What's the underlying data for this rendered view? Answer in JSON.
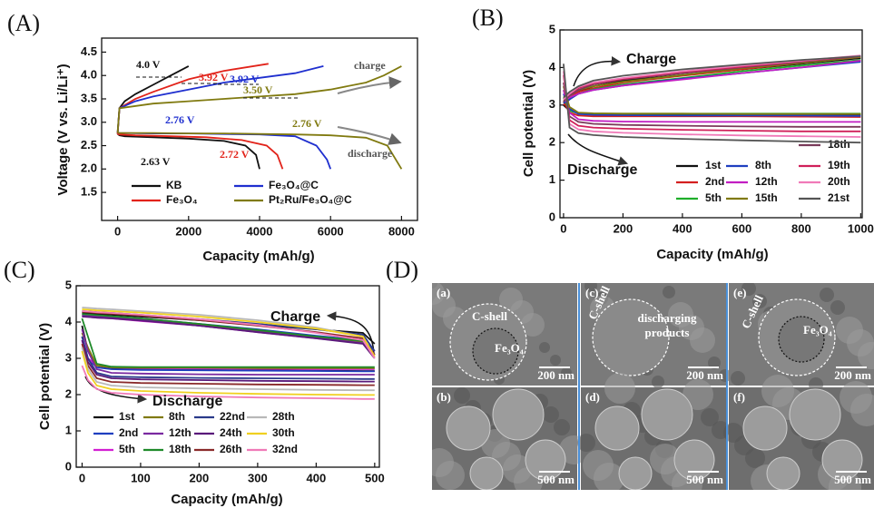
{
  "chart_data": [
    {
      "type": "line",
      "panel_label": "(A)",
      "x_label": "Capacity (mAh/g)",
      "y_label": "Voltage (V vs. Li/Li⁺)",
      "xlim": [
        -450,
        8450
      ],
      "ylim": [
        0.9,
        4.8
      ],
      "xticks": [
        0,
        2000,
        4000,
        6000,
        8000
      ],
      "yticks": [
        1.5,
        {
          "value": 2,
          "label": "2.0"
        },
        2.5,
        {
          "value": 3,
          "label": "3.0"
        },
        3.5,
        {
          "value": 4,
          "label": "4.0"
        },
        4.5
      ],
      "series": [
        {
          "name": "KB",
          "color": "#111111",
          "discharge_x": [
            0,
            50,
            200,
            1000,
            2000,
            3000,
            3600,
            3900,
            4000
          ],
          "discharge": [
            2.75,
            2.72,
            2.7,
            2.68,
            2.65,
            2.6,
            2.5,
            2.3,
            2.0
          ],
          "charge_x": [
            0,
            50,
            200,
            500,
            1000,
            1500,
            2000
          ],
          "charge": [
            2.75,
            3.3,
            3.45,
            3.6,
            3.8,
            4.0,
            4.2
          ]
        },
        {
          "name": "Fe₃O₄",
          "color": "#e2231a",
          "discharge_x": [
            0,
            50,
            500,
            1500,
            2500,
            3500,
            4200,
            4500,
            4650
          ],
          "discharge": [
            2.75,
            2.74,
            2.72,
            2.7,
            2.68,
            2.62,
            2.5,
            2.3,
            2.0
          ],
          "charge_x": [
            0,
            50,
            500,
            1000,
            2000,
            3000,
            4250
          ],
          "charge": [
            2.75,
            3.3,
            3.5,
            3.65,
            3.92,
            4.1,
            4.25
          ]
        },
        {
          "name": "Fe₃O₄@C",
          "color": "#1f2fcf",
          "discharge_x": [
            0,
            50,
            1000,
            2000,
            3000,
            4000,
            5000,
            5600,
            5900,
            6000
          ],
          "discharge": [
            2.78,
            2.77,
            2.76,
            2.76,
            2.75,
            2.74,
            2.7,
            2.5,
            2.2,
            2.0
          ],
          "charge_x": [
            0,
            50,
            500,
            1000,
            2000,
            3000,
            4000,
            5000,
            5800
          ],
          "charge": [
            2.78,
            3.3,
            3.45,
            3.55,
            3.7,
            3.85,
            3.95,
            4.05,
            4.2
          ]
        },
        {
          "name": "Pt₂Ru/Fe₃O₄@C",
          "color": "#807a10",
          "discharge_x": [
            0,
            50,
            1000,
            2000,
            3000,
            4000,
            5000,
            6000,
            7000,
            7600,
            8000
          ],
          "discharge": [
            2.78,
            2.77,
            2.77,
            2.76,
            2.76,
            2.75,
            2.74,
            2.72,
            2.67,
            2.5,
            2.0
          ],
          "charge_x": [
            0,
            50,
            1000,
            2000,
            3000,
            4000,
            5000,
            6000,
            7000,
            7500,
            8000
          ],
          "charge": [
            2.78,
            3.3,
            3.4,
            3.45,
            3.5,
            3.55,
            3.6,
            3.7,
            3.85,
            4.0,
            4.2
          ]
        }
      ],
      "annotations": [
        {
          "text": "4.0 V",
          "color": "#111111"
        },
        {
          "text": "3.92 V",
          "color": "#e2231a"
        },
        {
          "text": "3.92 V",
          "color": "#1f2fcf"
        },
        {
          "text": "3.50 V",
          "color": "#807a10"
        },
        {
          "text": "2.76 V",
          "color": "#1f2fcf"
        },
        {
          "text": "2.76 V",
          "color": "#807a10"
        },
        {
          "text": "2.63 V",
          "color": "#111111"
        },
        {
          "text": "2.72 V",
          "color": "#e2231a"
        },
        {
          "text": "charge",
          "color": "#555555"
        },
        {
          "text": "discharge",
          "color": "#555555"
        }
      ]
    },
    {
      "type": "line",
      "panel_label": "(B)",
      "x_label": "Capacity (mAh/g)",
      "y_label": "Cell potential (V)",
      "xlim": [
        -12,
        1005
      ],
      "ylim": [
        0,
        5
      ],
      "xticks": [
        0,
        200,
        400,
        600,
        800,
        1000
      ],
      "yticks": [
        0,
        1,
        2,
        3,
        4,
        5
      ],
      "x": [
        0,
        20,
        50,
        100,
        200,
        400,
        600,
        800,
        1000
      ],
      "series": [
        {
          "name": "1st",
          "color": "#111111",
          "discharge": [
            3.0,
            2.85,
            2.78,
            2.76,
            2.75,
            2.75,
            2.75,
            2.75,
            2.74
          ],
          "charge": [
            3.0,
            3.15,
            3.35,
            3.5,
            3.65,
            3.8,
            3.95,
            4.1,
            4.25
          ]
        },
        {
          "name": "2nd",
          "color": "#d42020",
          "discharge": [
            3.1,
            2.8,
            2.72,
            2.7,
            2.7,
            2.7,
            2.7,
            2.69,
            2.68
          ],
          "charge": [
            3.0,
            3.2,
            3.35,
            3.45,
            3.6,
            3.78,
            3.95,
            4.12,
            4.28
          ]
        },
        {
          "name": "5th",
          "color": "#1fae2a",
          "discharge": [
            3.2,
            2.85,
            2.78,
            2.77,
            2.77,
            2.77,
            2.77,
            2.77,
            2.77
          ],
          "charge": [
            3.05,
            3.2,
            3.3,
            3.42,
            3.55,
            3.72,
            3.9,
            4.05,
            4.2
          ]
        },
        {
          "name": "8th",
          "color": "#1f3fc0",
          "discharge": [
            3.3,
            2.9,
            2.76,
            2.74,
            2.73,
            2.72,
            2.72,
            2.72,
            2.71
          ],
          "charge": [
            3.05,
            3.15,
            3.3,
            3.4,
            3.52,
            3.7,
            3.85,
            4.0,
            4.15
          ]
        },
        {
          "name": "12th",
          "color": "#c21fc2",
          "discharge": [
            3.4,
            2.8,
            2.62,
            2.58,
            2.56,
            2.55,
            2.55,
            2.55,
            2.55
          ],
          "charge": [
            3.1,
            3.2,
            3.3,
            3.4,
            3.52,
            3.68,
            3.85,
            4.0,
            4.18
          ]
        },
        {
          "name": "15th",
          "color": "#807a10",
          "discharge": [
            3.5,
            2.95,
            2.8,
            2.78,
            2.77,
            2.77,
            2.76,
            2.76,
            2.76
          ],
          "charge": [
            3.1,
            3.25,
            3.4,
            3.5,
            3.62,
            3.8,
            3.98,
            4.12,
            4.28
          ]
        },
        {
          "name": "18th",
          "color": "#7a3a5a",
          "discharge": [
            3.6,
            2.7,
            2.55,
            2.5,
            2.47,
            2.45,
            2.43,
            2.42,
            2.42
          ],
          "charge": [
            3.1,
            3.25,
            3.4,
            3.55,
            3.68,
            3.85,
            4.0,
            4.15,
            4.3
          ]
        },
        {
          "name": "19th",
          "color": "#d0205a",
          "discharge": [
            3.8,
            2.6,
            2.45,
            2.4,
            2.37,
            2.34,
            2.32,
            2.3,
            2.3
          ],
          "charge": [
            3.15,
            3.3,
            3.45,
            3.58,
            3.7,
            3.88,
            4.02,
            4.17,
            4.3
          ]
        },
        {
          "name": "20th",
          "color": "#f07ab8",
          "discharge": [
            3.9,
            2.5,
            2.35,
            2.3,
            2.26,
            2.22,
            2.19,
            2.17,
            2.15
          ],
          "charge": [
            3.15,
            3.3,
            3.48,
            3.6,
            3.72,
            3.9,
            4.05,
            4.18,
            4.32
          ]
        },
        {
          "name": "21st",
          "color": "#555555",
          "discharge": [
            4.1,
            2.4,
            2.25,
            2.2,
            2.15,
            2.1,
            2.06,
            2.03,
            2.0
          ],
          "charge": [
            3.2,
            3.35,
            3.5,
            3.65,
            3.78,
            3.95,
            4.08,
            4.2,
            4.3
          ]
        }
      ],
      "annotations": [
        {
          "text": "Charge"
        },
        {
          "text": "Discharge"
        }
      ]
    },
    {
      "type": "line",
      "panel_label": "(C)",
      "x_label": "Capacity (mAh/g)",
      "y_label": "Cell potential (V)",
      "xlim": [
        -10,
        508
      ],
      "ylim": [
        0,
        5
      ],
      "xticks": [
        0,
        100,
        200,
        300,
        400,
        500
      ],
      "yticks": [
        0,
        1,
        2,
        3,
        4,
        5
      ],
      "x": [
        0,
        10,
        25,
        50,
        100,
        200,
        300,
        400,
        480,
        500
      ],
      "series": [
        {
          "name": "1st",
          "color": "#111111",
          "discharge": [
            3.9,
            3.2,
            2.8,
            2.72,
            2.7,
            2.68,
            2.67,
            2.66,
            2.65,
            2.65
          ],
          "charge": [
            4.25,
            4.24,
            4.22,
            4.2,
            4.15,
            4.05,
            3.92,
            3.8,
            3.7,
            3.4
          ]
        },
        {
          "name": "2nd",
          "color": "#1f3fc0",
          "discharge": [
            3.6,
            3.0,
            2.75,
            2.7,
            2.68,
            2.67,
            2.66,
            2.65,
            2.64,
            2.64
          ],
          "charge": [
            4.2,
            4.19,
            4.17,
            4.15,
            4.1,
            3.95,
            3.8,
            3.62,
            3.5,
            3.2
          ]
        },
        {
          "name": "5th",
          "color": "#d21fd2",
          "discharge": [
            3.5,
            3.0,
            2.8,
            2.75,
            2.73,
            2.72,
            2.71,
            2.7,
            2.7,
            2.7
          ],
          "charge": [
            4.15,
            4.14,
            4.12,
            4.1,
            4.03,
            3.9,
            3.72,
            3.55,
            3.42,
            3.1
          ]
        },
        {
          "name": "8th",
          "color": "#807a10",
          "discharge": [
            3.7,
            3.3,
            2.8,
            2.75,
            2.74,
            2.74,
            2.73,
            2.73,
            2.73,
            2.73
          ],
          "charge": [
            4.2,
            4.19,
            4.17,
            4.14,
            4.08,
            3.92,
            3.75,
            3.58,
            3.45,
            3.1
          ]
        },
        {
          "name": "12th",
          "color": "#7a2aa0",
          "discharge": [
            3.8,
            3.2,
            2.7,
            2.6,
            2.58,
            2.56,
            2.55,
            2.55,
            2.55,
            2.55
          ],
          "charge": [
            4.18,
            4.17,
            4.15,
            4.12,
            4.06,
            3.9,
            3.73,
            3.56,
            3.42,
            3.05
          ]
        },
        {
          "name": "18th",
          "color": "#1f8a2a",
          "discharge": [
            4.1,
            3.6,
            2.85,
            2.77,
            2.76,
            2.76,
            2.76,
            2.76,
            2.76,
            2.76
          ],
          "charge": [
            4.22,
            4.21,
            4.19,
            4.16,
            4.1,
            3.95,
            3.78,
            3.6,
            3.48,
            3.1
          ]
        },
        {
          "name": "22nd",
          "color": "#2a3a8a",
          "discharge": [
            3.6,
            3.0,
            2.6,
            2.5,
            2.48,
            2.46,
            2.45,
            2.44,
            2.43,
            2.43
          ],
          "charge": [
            4.3,
            4.29,
            4.27,
            4.25,
            4.2,
            4.08,
            3.95,
            3.8,
            3.65,
            3.2
          ]
        },
        {
          "name": "24th",
          "color": "#5a1a7a",
          "discharge": [
            3.5,
            2.9,
            2.55,
            2.45,
            2.42,
            2.4,
            2.38,
            2.37,
            2.36,
            2.36
          ],
          "charge": [
            4.15,
            4.14,
            4.12,
            4.1,
            4.04,
            3.9,
            3.72,
            3.55,
            3.4,
            3.0
          ]
        },
        {
          "name": "26th",
          "color": "#8a2a2a",
          "discharge": [
            3.4,
            2.8,
            2.45,
            2.35,
            2.32,
            2.3,
            2.28,
            2.27,
            2.26,
            2.26
          ],
          "charge": [
            4.28,
            4.27,
            4.25,
            4.23,
            4.18,
            4.05,
            3.9,
            3.72,
            3.55,
            3.1
          ]
        },
        {
          "name": "28th",
          "color": "#b8b8b8",
          "discharge": [
            3.3,
            2.7,
            2.35,
            2.25,
            2.2,
            2.17,
            2.15,
            2.13,
            2.12,
            2.12
          ],
          "charge": [
            4.4,
            4.39,
            4.37,
            4.35,
            4.3,
            4.2,
            4.05,
            3.85,
            3.6,
            3.0
          ]
        },
        {
          "name": "30th",
          "color": "#f0d020",
          "discharge": [
            3.2,
            2.6,
            2.25,
            2.15,
            2.1,
            2.05,
            2.02,
            2.0,
            1.99,
            1.99
          ],
          "charge": [
            4.35,
            4.34,
            4.32,
            4.3,
            4.26,
            4.15,
            4.0,
            3.82,
            3.6,
            3.05
          ]
        },
        {
          "name": "32nd",
          "color": "#f07ab8",
          "discharge": [
            2.8,
            2.4,
            2.15,
            2.05,
            2.0,
            1.95,
            1.92,
            1.9,
            1.88,
            1.88
          ],
          "charge": [
            4.3,
            4.29,
            4.27,
            4.25,
            4.2,
            4.08,
            3.92,
            3.7,
            3.5,
            3.0
          ]
        }
      ],
      "annotations": [
        {
          "text": "Charge"
        },
        {
          "text": "Discharge"
        }
      ]
    }
  ],
  "panel_d": {
    "label": "(D)",
    "images": [
      {
        "label": "(a)",
        "scale": "200 nm",
        "texts": [
          "C-shell",
          "Fe₃O₄"
        ]
      },
      {
        "label": "(c)",
        "scale": "200 nm",
        "texts": [
          "C-shell",
          "discharging",
          "products"
        ]
      },
      {
        "label": "(e)",
        "scale": "200 nm",
        "texts": [
          "C-shell",
          "Fe₃O₄"
        ]
      },
      {
        "label": "(b)",
        "scale": "500 nm",
        "texts": []
      },
      {
        "label": "(d)",
        "scale": "500 nm",
        "texts": []
      },
      {
        "label": "(f)",
        "scale": "500 nm",
        "texts": []
      }
    ]
  }
}
